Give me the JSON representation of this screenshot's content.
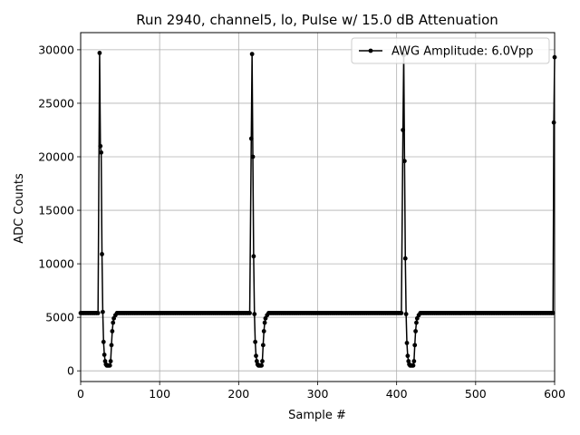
{
  "chart_data": {
    "type": "line",
    "title": "Run 2940, channel5, lo, Pulse w/ 15.0 dB Attenuation",
    "xlabel": "Sample #",
    "ylabel": "ADC Counts",
    "xlim": [
      0,
      600
    ],
    "ylim": [
      -1000,
      31600
    ],
    "xticks": [
      0,
      100,
      200,
      300,
      400,
      500,
      600
    ],
    "yticks": [
      0,
      5000,
      10000,
      15000,
      20000,
      25000,
      30000
    ],
    "grid": true,
    "legend_position": "upper right",
    "series": [
      {
        "name": "AWG Amplitude: 6.0Vpp",
        "color": "#000000",
        "marker": "circle",
        "baseline": 5400,
        "sample_step": 2,
        "pulses": [
          {
            "x": [
              22,
              24,
              25,
              26,
              27,
              28,
              29,
              30,
              31,
              32,
              33,
              34,
              35,
              36,
              37,
              38,
              39,
              40,
              41,
              42,
              44,
              46
            ],
            "y": [
              5400,
              29700,
              21000,
              20400,
              10900,
              5500,
              2700,
              1500,
              900,
              600,
              500,
              500,
              500,
              500,
              500,
              900,
              2400,
              3700,
              4500,
              4900,
              5200,
              5400
            ]
          },
          {
            "x": [
              214,
              216,
              217,
              218,
              219,
              220,
              221,
              222,
              223,
              224,
              225,
              226,
              227,
              228,
              229,
              230,
              231,
              232,
              233,
              234,
              236,
              238
            ],
            "y": [
              5400,
              21700,
              29600,
              20000,
              10700,
              5300,
              2700,
              1400,
              900,
              600,
              500,
              500,
              500,
              500,
              500,
              900,
              2400,
              3700,
              4500,
              4900,
              5200,
              5400
            ]
          },
          {
            "x": [
              406,
              408,
              409,
              410,
              411,
              412,
              413,
              414,
              415,
              416,
              417,
              418,
              419,
              420,
              421,
              422,
              423,
              424,
              425,
              426,
              428,
              430
            ],
            "y": [
              5400,
              22500,
              29500,
              19600,
              10500,
              5300,
              2600,
              1400,
              900,
              600,
              500,
              500,
              500,
              500,
              500,
              900,
              2400,
              3700,
              4500,
              4900,
              5200,
              5400
            ]
          },
          {
            "x": [
              598,
              599,
              600
            ],
            "y": [
              5400,
              23200,
              29300
            ]
          }
        ]
      }
    ]
  }
}
